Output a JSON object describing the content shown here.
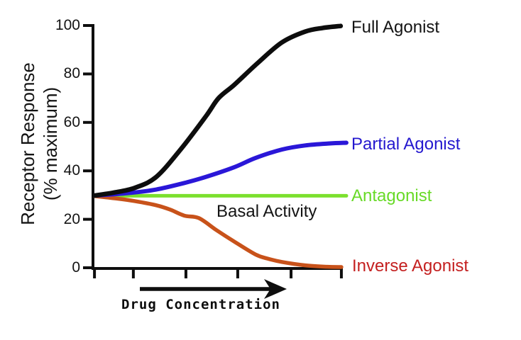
{
  "figure": {
    "background": "#ffffff",
    "axis_color": "#0e0e0e",
    "text_color": "#141414"
  },
  "chart_data": {
    "type": "line",
    "title": "",
    "xlabel": "Drug Concentration",
    "ylabel": "Receptor Response (% maximum)",
    "ylabel_lines": [
      "Receptor Response",
      "(% maximum)"
    ],
    "annotation": "Basal Activity",
    "basal_level": 30,
    "grid": false,
    "legend_position": "labels-right-of-curves",
    "xlim": [
      0,
      10.2
    ],
    "ylim": [
      0,
      100
    ],
    "y_ticks": [
      100,
      80,
      60,
      40,
      20,
      0
    ],
    "x_ticks": [
      0.06,
      1.62,
      3.73,
      5.81,
      7.95,
      9.97
    ],
    "x_axis_arrow": true,
    "series": [
      {
        "name": "Full Agonist",
        "color": "#0d0d0d",
        "label_color": "#141414",
        "points": [
          [
            0.06,
            29.8
          ],
          [
            0.83,
            31
          ],
          [
            1.68,
            33
          ],
          [
            2.54,
            37.5
          ],
          [
            3.53,
            49
          ],
          [
            4.53,
            62.5
          ],
          [
            5.04,
            70
          ],
          [
            5.67,
            75.5
          ],
          [
            6.61,
            84.5
          ],
          [
            7.58,
            93
          ],
          [
            8.52,
            97.5
          ],
          [
            9.23,
            99
          ],
          [
            9.94,
            99.8
          ]
        ]
      },
      {
        "name": "Partial Agonist",
        "color": "#2a17d8",
        "label_color": "#2418cf",
        "points": [
          [
            0.06,
            29.8
          ],
          [
            1.4,
            30.8
          ],
          [
            2.54,
            32.3
          ],
          [
            3.67,
            35
          ],
          [
            4.53,
            37.5
          ],
          [
            5.67,
            41.5
          ],
          [
            6.52,
            45.3
          ],
          [
            7.58,
            48.8
          ],
          [
            8.52,
            50.5
          ],
          [
            9.5,
            51.3
          ],
          [
            10.17,
            51.6
          ]
        ]
      },
      {
        "name": "Antagonist",
        "color": "#7ce02e",
        "label_color": "#68da27",
        "points": [
          [
            0.06,
            29.7
          ],
          [
            5.0,
            29.7
          ],
          [
            10.17,
            29.7
          ]
        ]
      },
      {
        "name": "Inverse Agonist",
        "color": "#c8521a",
        "label_color": "#c42020",
        "points": [
          [
            0.06,
            29.6
          ],
          [
            1.0,
            28.5
          ],
          [
            1.68,
            27.5
          ],
          [
            2.54,
            25.8
          ],
          [
            3.1,
            24
          ],
          [
            3.67,
            21.5
          ],
          [
            4.25,
            20.5
          ],
          [
            4.96,
            15.5
          ],
          [
            5.67,
            10.8
          ],
          [
            6.52,
            5.5
          ],
          [
            7.0,
            3.8
          ],
          [
            7.58,
            2.4
          ],
          [
            8.52,
            1.0
          ],
          [
            9.4,
            0.4
          ],
          [
            9.97,
            0.3
          ]
        ]
      }
    ]
  }
}
